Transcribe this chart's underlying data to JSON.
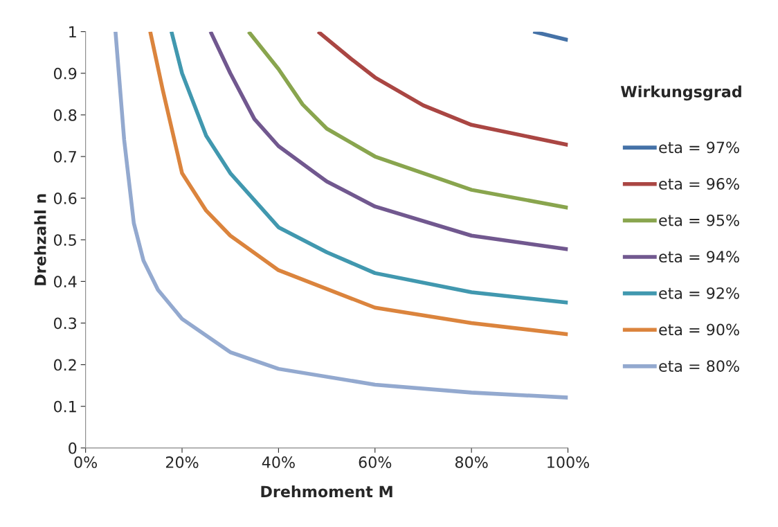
{
  "chart_data": {
    "type": "line",
    "xlabel": "Drehmoment M",
    "ylabel": "Drehzahl n",
    "legend_title": "Wirkungsgrad",
    "legend": "right",
    "grid": false,
    "marker": "none",
    "line_style": "solid",
    "xlim": [
      0,
      1
    ],
    "ylim": [
      0,
      1
    ],
    "xticks": [
      {
        "value": 0,
        "label": "0%"
      },
      {
        "value": 0.2,
        "label": "20%"
      },
      {
        "value": 0.4,
        "label": "40%"
      },
      {
        "value": 0.6,
        "label": "60%"
      },
      {
        "value": 0.8,
        "label": "80%"
      },
      {
        "value": 1,
        "label": "100%"
      }
    ],
    "yticks": [
      0,
      0.1,
      0.2,
      0.3,
      0.4,
      0.5,
      0.6,
      0.7,
      0.8,
      0.9,
      1
    ],
    "series": [
      {
        "name": "eta = 97%",
        "color": "#4572a7",
        "x": [
          0.928,
          1.0
        ],
        "values": [
          1.0,
          0.98
        ]
      },
      {
        "name": "eta = 96%",
        "color": "#aa4643",
        "x": [
          0.482,
          0.55,
          0.6,
          0.7,
          0.8,
          1.0
        ],
        "values": [
          1.0,
          0.935,
          0.89,
          0.823,
          0.776,
          0.728
        ]
      },
      {
        "name": "eta = 95%",
        "color": "#89a54e",
        "x": [
          0.338,
          0.4,
          0.45,
          0.5,
          0.6,
          0.8,
          1.0
        ],
        "values": [
          1.0,
          0.91,
          0.825,
          0.767,
          0.7,
          0.62,
          0.577
        ]
      },
      {
        "name": "eta = 94%",
        "color": "#71588f",
        "x": [
          0.259,
          0.3,
          0.35,
          0.4,
          0.5,
          0.6,
          0.8,
          1.0
        ],
        "values": [
          1.0,
          0.9,
          0.79,
          0.725,
          0.64,
          0.58,
          0.51,
          0.477
        ]
      },
      {
        "name": "eta = 92%",
        "color": "#4198af",
        "x": [
          0.178,
          0.2,
          0.25,
          0.3,
          0.4,
          0.5,
          0.6,
          0.8,
          1.0
        ],
        "values": [
          1.0,
          0.9,
          0.75,
          0.66,
          0.53,
          0.47,
          0.42,
          0.374,
          0.349
        ]
      },
      {
        "name": "eta = 90%",
        "color": "#db843d",
        "x": [
          0.134,
          0.16,
          0.2,
          0.25,
          0.3,
          0.4,
          0.6,
          0.8,
          1.0
        ],
        "values": [
          1.0,
          0.86,
          0.66,
          0.57,
          0.51,
          0.427,
          0.337,
          0.3,
          0.273
        ]
      },
      {
        "name": "eta = 80%",
        "color": "#93a9cf",
        "x": [
          0.062,
          0.08,
          0.1,
          0.12,
          0.15,
          0.2,
          0.3,
          0.4,
          0.6,
          0.8,
          1.0
        ],
        "values": [
          1.0,
          0.74,
          0.54,
          0.45,
          0.38,
          0.31,
          0.23,
          0.19,
          0.152,
          0.133,
          0.121
        ]
      }
    ]
  }
}
